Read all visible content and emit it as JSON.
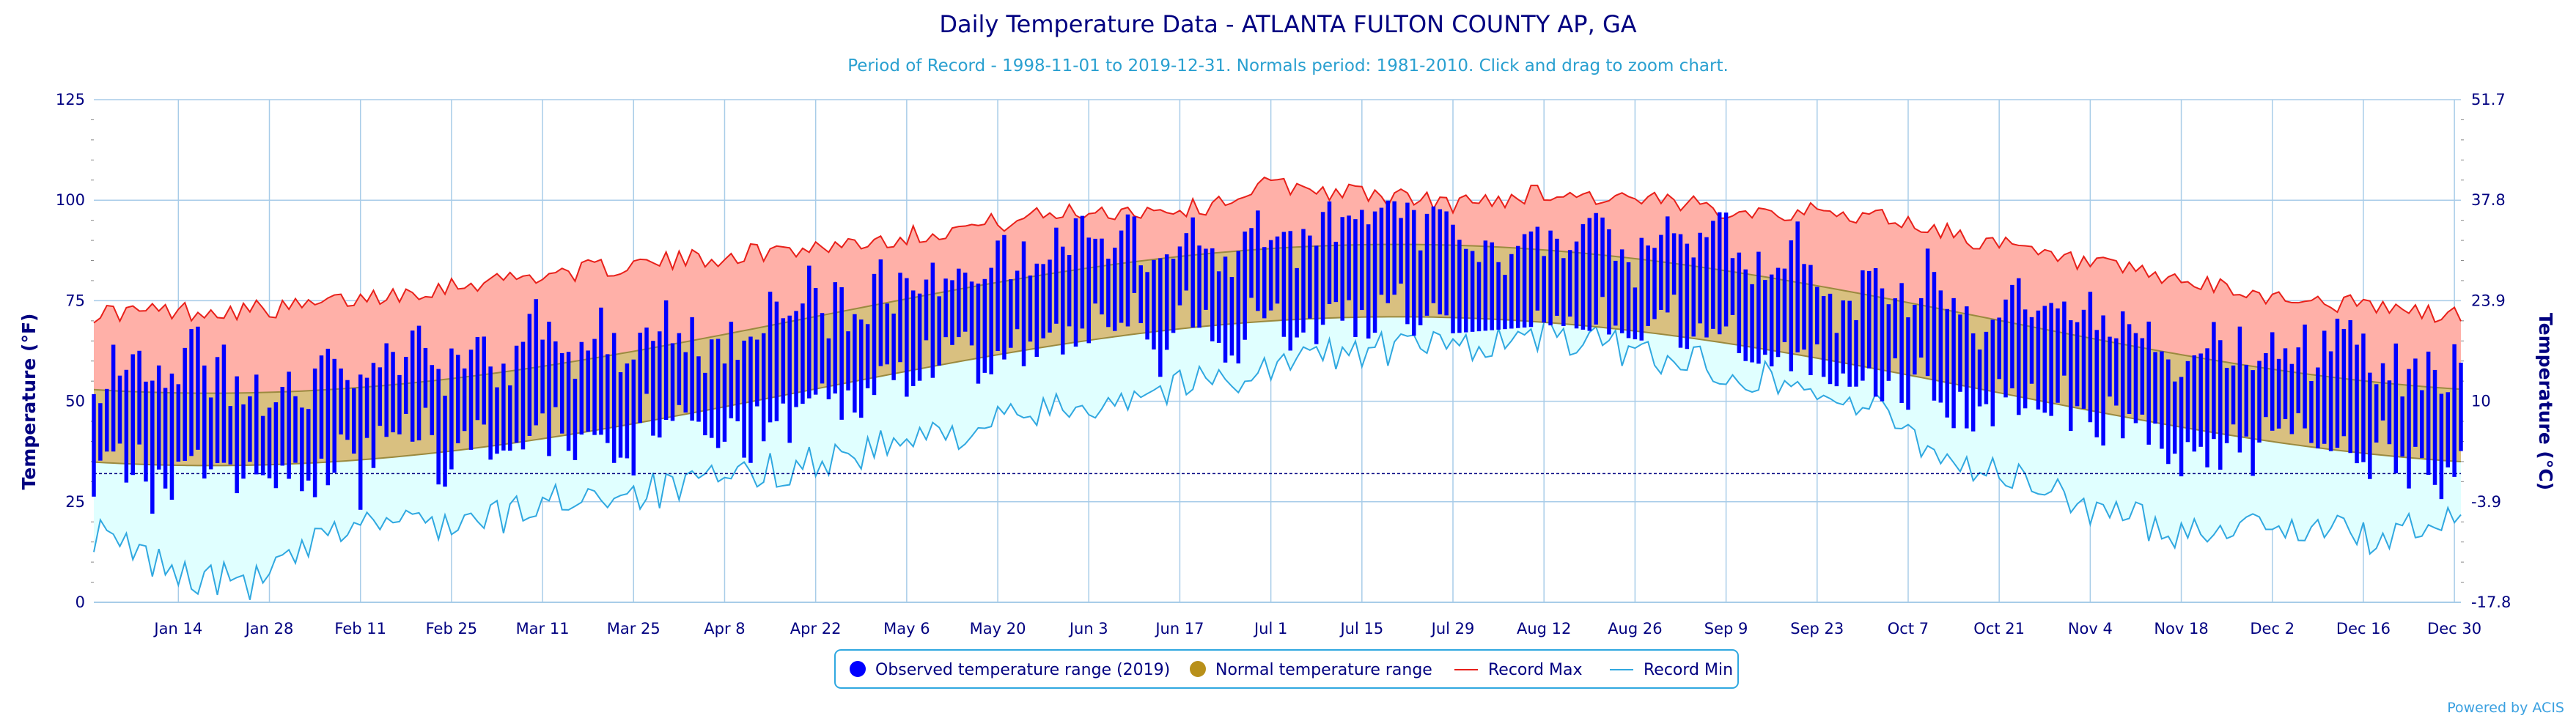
{
  "colors": {
    "observed": "#0000ff",
    "normal_fill": "#d9c080",
    "normal_line": "#9b8a3f",
    "record_max_line": "#e8201a",
    "record_max_fill": "#ffb0a8",
    "record_min_line": "#30a8e0",
    "record_min_fill": "#e0ffff",
    "axis_text": "#000080",
    "grid": "#a8cce8",
    "freeze_line": "#000080",
    "legend_border": "#30a8e0"
  },
  "chart_data": {
    "type": "bar",
    "title": "Daily Temperature Data - ATLANTA FULTON COUNTY AP, GA",
    "subtitle": "Period of Record - 1998-11-01 to 2019-12-31. Normals period: 1981-2010. Click and drag to zoom chart.",
    "ylabel": "Temperature (°F)",
    "ylabel_right": "Temperature (°C)",
    "ylim": [
      0,
      125
    ],
    "yticks": [
      0,
      25,
      50,
      75,
      100,
      125
    ],
    "yticks_right": [
      "-17.8",
      "-3.9",
      "10",
      "23.9",
      "37.8",
      "51.7"
    ],
    "xlim_days": [
      0,
      364
    ],
    "xtick_labels": [
      "Jan 14",
      "Jan 28",
      "Feb 11",
      "Feb 25",
      "Mar 11",
      "Mar 25",
      "Apr 8",
      "Apr 22",
      "May 6",
      "May 20",
      "Jun 3",
      "Jun 17",
      "Jul 1",
      "Jul 15",
      "Jul 29",
      "Aug 12",
      "Aug 26",
      "Sep 9",
      "Sep 23",
      "Oct 7",
      "Oct 21",
      "Nov 4",
      "Nov 18",
      "Dec 2",
      "Dec 16",
      "Dec 30"
    ],
    "xtick_days": [
      13,
      27,
      41,
      55,
      69,
      83,
      97,
      111,
      125,
      139,
      153,
      167,
      181,
      195,
      209,
      223,
      237,
      251,
      265,
      279,
      293,
      307,
      321,
      335,
      349,
      363
    ],
    "freezing_f": 32,
    "grid": true,
    "legend_position": "bottom-center",
    "series_summary": [
      {
        "name": "Observed temperature range (2019)",
        "daily_high_range": [
          45,
          99
        ],
        "daily_low_range": [
          21,
          77
        ]
      },
      {
        "name": "Normal temperature range",
        "normal_high": {
          "jan1": 52,
          "jul20": 89,
          "dec31": 52
        },
        "normal_low": {
          "jan1": 34,
          "jul20": 71,
          "dec31": 34
        }
      },
      {
        "name": "Record Max",
        "anchors": [
          [
            0,
            72
          ],
          [
            30,
            73
          ],
          [
            60,
            80
          ],
          [
            90,
            85
          ],
          [
            120,
            90
          ],
          [
            150,
            97
          ],
          [
            170,
            98
          ],
          [
            181,
            104
          ],
          [
            210,
            99
          ],
          [
            223,
            102
          ],
          [
            250,
            98
          ],
          [
            275,
            96
          ],
          [
            300,
            86
          ],
          [
            330,
            77
          ],
          [
            364,
            71
          ]
        ]
      },
      {
        "name": "Record Min",
        "anchors": [
          [
            0,
            17
          ],
          [
            15,
            6
          ],
          [
            25,
            5
          ],
          [
            40,
            20
          ],
          [
            60,
            20
          ],
          [
            75,
            27
          ],
          [
            90,
            28
          ],
          [
            105,
            33
          ],
          [
            120,
            38
          ],
          [
            140,
            45
          ],
          [
            160,
            52
          ],
          [
            175,
            56
          ],
          [
            190,
            62
          ],
          [
            210,
            64
          ],
          [
            225,
            66
          ],
          [
            245,
            60
          ],
          [
            260,
            55
          ],
          [
            275,
            47
          ],
          [
            285,
            36
          ],
          [
            300,
            28
          ],
          [
            310,
            22
          ],
          [
            320,
            18
          ],
          [
            335,
            20
          ],
          [
            350,
            16
          ],
          [
            364,
            20
          ]
        ]
      }
    ]
  },
  "legend": {
    "observed": "Observed temperature range (2019)",
    "normal": "Normal temperature range",
    "record_max": "Record Max",
    "record_min": "Record Min"
  },
  "credit": "Powered by ACIS"
}
